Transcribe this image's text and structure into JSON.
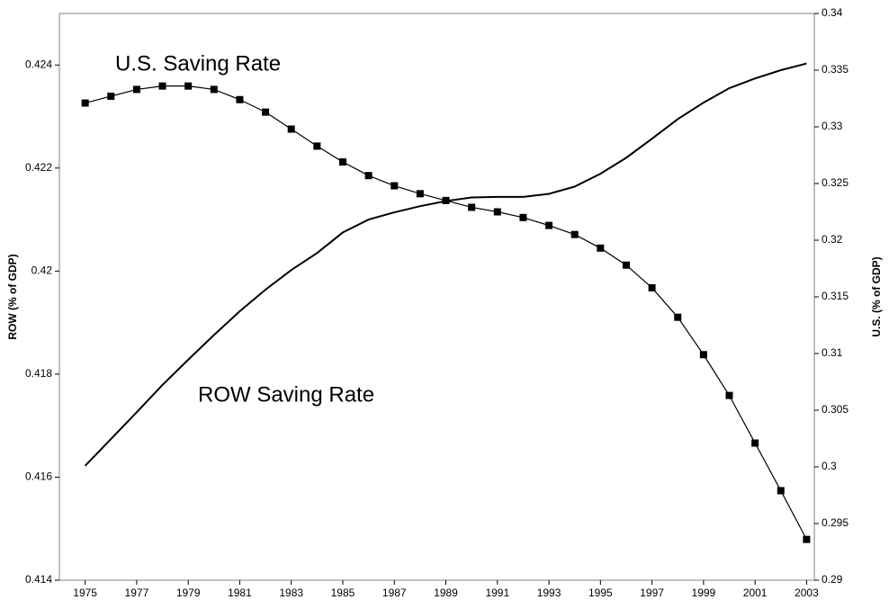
{
  "chart_data": {
    "type": "line",
    "annotations": [
      "U.S. Saving Rate",
      "ROW Saving Rate"
    ],
    "ylabel": "ROW (% of GDP)",
    "y2label": "U.S. (% of GDP)",
    "x": [
      1975,
      1976,
      1977,
      1978,
      1979,
      1980,
      1981,
      1982,
      1983,
      1984,
      1985,
      1986,
      1987,
      1988,
      1989,
      1990,
      1991,
      1992,
      1993,
      1994,
      1995,
      1996,
      1997,
      1998,
      1999,
      2000,
      2001,
      2002,
      2003
    ],
    "series": [
      {
        "name": "U.S.",
        "color": "#000000",
        "axis": "y2",
        "marker": "square",
        "values": [
          0.3321,
          0.3327,
          0.3333,
          0.3336,
          0.3336,
          0.3333,
          0.3324,
          0.3313,
          0.3298,
          0.3283,
          0.3269,
          0.3257,
          0.3248,
          0.3241,
          0.3235,
          0.3229,
          0.3225,
          0.322,
          0.3213,
          0.3205,
          0.3193,
          0.3178,
          0.3158,
          0.3132,
          0.3099,
          0.3063,
          0.3021,
          0.2979,
          0.2936
        ]
      },
      {
        "name": "ROW",
        "color": "#000000",
        "axis": "y",
        "values": [
          0.41622,
          0.41674,
          0.41726,
          0.41779,
          0.41828,
          0.41876,
          0.41922,
          0.41964,
          0.42002,
          0.42035,
          0.42075,
          0.421,
          0.42114,
          0.42126,
          0.42136,
          0.42143,
          0.42144,
          0.42144,
          0.4215,
          0.42164,
          0.42189,
          0.4222,
          0.42257,
          0.42295,
          0.42327,
          0.42355,
          0.42374,
          0.4239,
          0.42403
        ]
      }
    ],
    "xlim": [
      1974,
      2003.3
    ],
    "xticks": [
      1975,
      1977,
      1979,
      1981,
      1983,
      1985,
      1987,
      1989,
      1991,
      1993,
      1995,
      1997,
      1999,
      2001,
      2003
    ],
    "ylim": [
      0.414,
      0.425
    ],
    "yticks": [
      0.414,
      0.416,
      0.418,
      0.42,
      0.422,
      0.424
    ],
    "y2lim": [
      0.29,
      0.34
    ],
    "y2ticks": [
      0.29,
      0.295,
      0.3,
      0.305,
      0.31,
      0.315,
      0.32,
      0.325,
      0.33,
      0.335,
      0.34
    ],
    "grid": false
  }
}
